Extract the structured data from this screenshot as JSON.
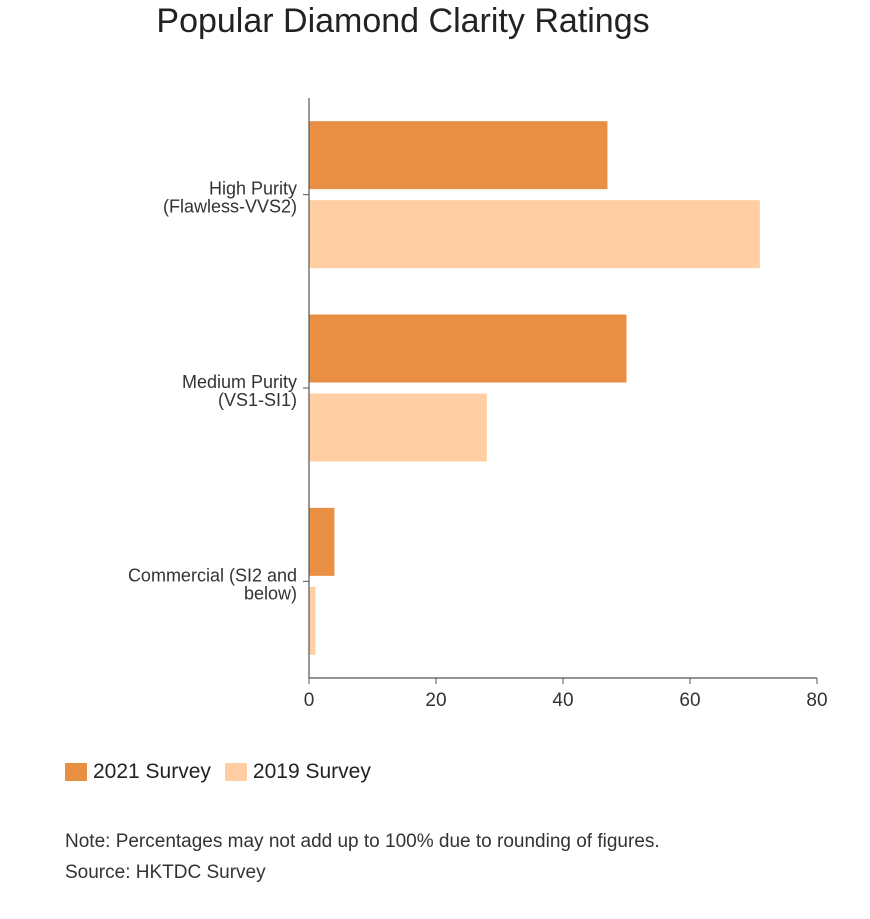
{
  "chart_data": {
    "type": "bar",
    "orientation": "horizontal",
    "title": "Popular Diamond Clarity Ratings",
    "categories": [
      [
        "High Purity",
        "(Flawless-VVS2)"
      ],
      [
        "Medium Purity",
        "(VS1-SI1)"
      ],
      [
        "Commercial (SI2 and",
        "below)"
      ]
    ],
    "series": [
      {
        "name": "2021 Survey",
        "color": "#E88F43",
        "values": [
          47,
          50,
          4
        ]
      },
      {
        "name": "2019 Survey",
        "color": "#FFCFA3",
        "values": [
          71,
          28,
          1
        ]
      }
    ],
    "xlim": [
      0,
      80
    ],
    "xticks": [
      "0",
      "20",
      "40",
      "60",
      "80"
    ],
    "grid": false,
    "legend_position": "bottom-left"
  },
  "notes": {
    "note": "Note: Percentages may not add up to 100% due to rounding of figures.",
    "source": "Source: HKTDC Survey"
  }
}
